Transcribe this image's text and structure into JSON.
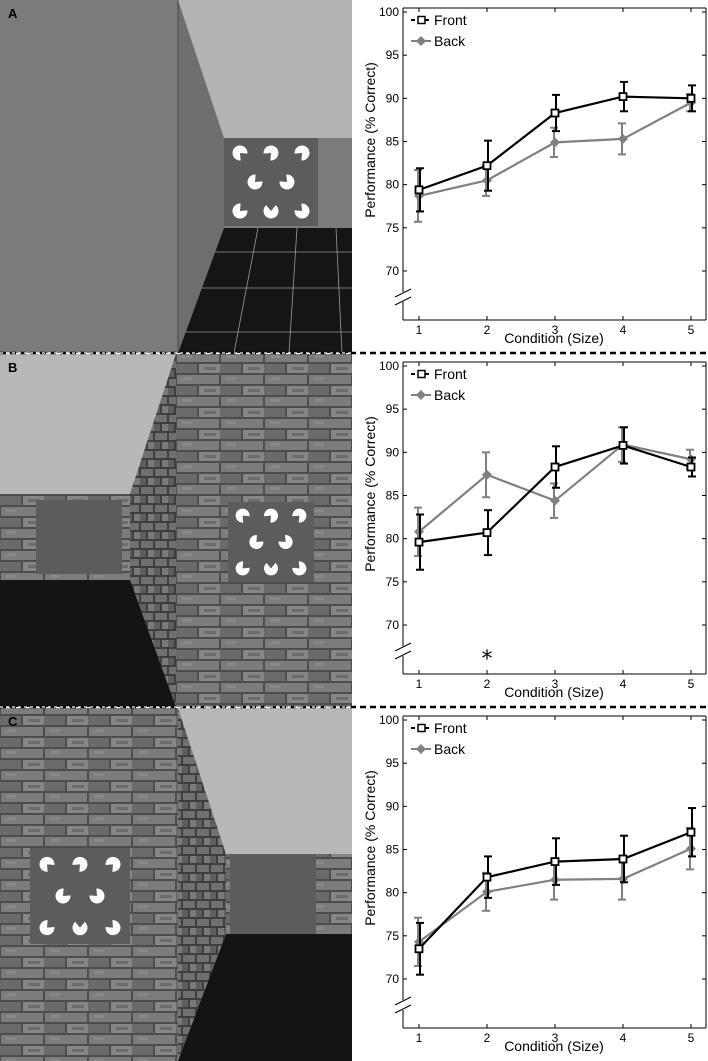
{
  "panels": [
    {
      "letter": "A",
      "scene": "plain",
      "stimulus_side": "front"
    },
    {
      "letter": "B",
      "scene": "brick",
      "stimulus_side": "front"
    },
    {
      "letter": "C",
      "scene": "brick",
      "stimulus_side": "back"
    }
  ],
  "colors": {
    "front": "#000000",
    "back": "#808080"
  },
  "chart_data": [
    {
      "type": "line",
      "x": [
        1,
        2,
        3,
        4,
        5
      ],
      "xlabel": "Condition (Size)",
      "ylabel": "Performance (% Correct)",
      "ylim": [
        70,
        100
      ],
      "yticks": [
        70,
        75,
        80,
        85,
        90,
        95,
        100
      ],
      "axis_break": true,
      "legend": "top-left",
      "grid": false,
      "annotation": "",
      "series": [
        {
          "name": "Front",
          "values": [
            79.4,
            82.2,
            88.3,
            90.2,
            90.0
          ],
          "errors": [
            2.5,
            2.9,
            2.1,
            1.7,
            1.5
          ]
        },
        {
          "name": "Back",
          "values": [
            78.7,
            80.5,
            84.9,
            85.3,
            89.5
          ],
          "errors": [
            3.0,
            1.8,
            1.7,
            1.8,
            1.0
          ]
        }
      ]
    },
    {
      "type": "line",
      "x": [
        1,
        2,
        3,
        4,
        5
      ],
      "xlabel": "Condition (Size)",
      "ylabel": "Performance (% Correct)",
      "ylim": [
        70,
        100
      ],
      "yticks": [
        70,
        75,
        80,
        85,
        90,
        95,
        100
      ],
      "axis_break": true,
      "legend": "top-left",
      "grid": false,
      "annotation": "*",
      "annotation_x": 2,
      "series": [
        {
          "name": "Front",
          "values": [
            79.6,
            80.7,
            88.3,
            90.8,
            88.3
          ],
          "errors": [
            3.2,
            2.6,
            2.4,
            2.1,
            1.1
          ]
        },
        {
          "name": "Back",
          "values": [
            80.8,
            87.4,
            84.4,
            90.9,
            89.2
          ],
          "errors": [
            2.8,
            2.6,
            2.0,
            2.0,
            1.1
          ]
        }
      ]
    },
    {
      "type": "line",
      "x": [
        1,
        2,
        3,
        4,
        5
      ],
      "xlabel": "Condition (Size)",
      "ylabel": "Performance (% Correct)",
      "ylim": [
        70,
        100
      ],
      "yticks": [
        70,
        75,
        80,
        85,
        90,
        95,
        100
      ],
      "axis_break": true,
      "legend": "top-left",
      "grid": false,
      "annotation": "",
      "series": [
        {
          "name": "Front",
          "values": [
            73.5,
            81.8,
            83.6,
            83.9,
            87.0
          ],
          "errors": [
            3.0,
            2.4,
            2.7,
            2.7,
            2.8
          ]
        },
        {
          "name": "Back",
          "values": [
            74.3,
            80.1,
            81.5,
            81.6,
            85.1
          ],
          "errors": [
            2.8,
            2.2,
            2.3,
            2.4,
            2.4
          ]
        }
      ]
    }
  ]
}
